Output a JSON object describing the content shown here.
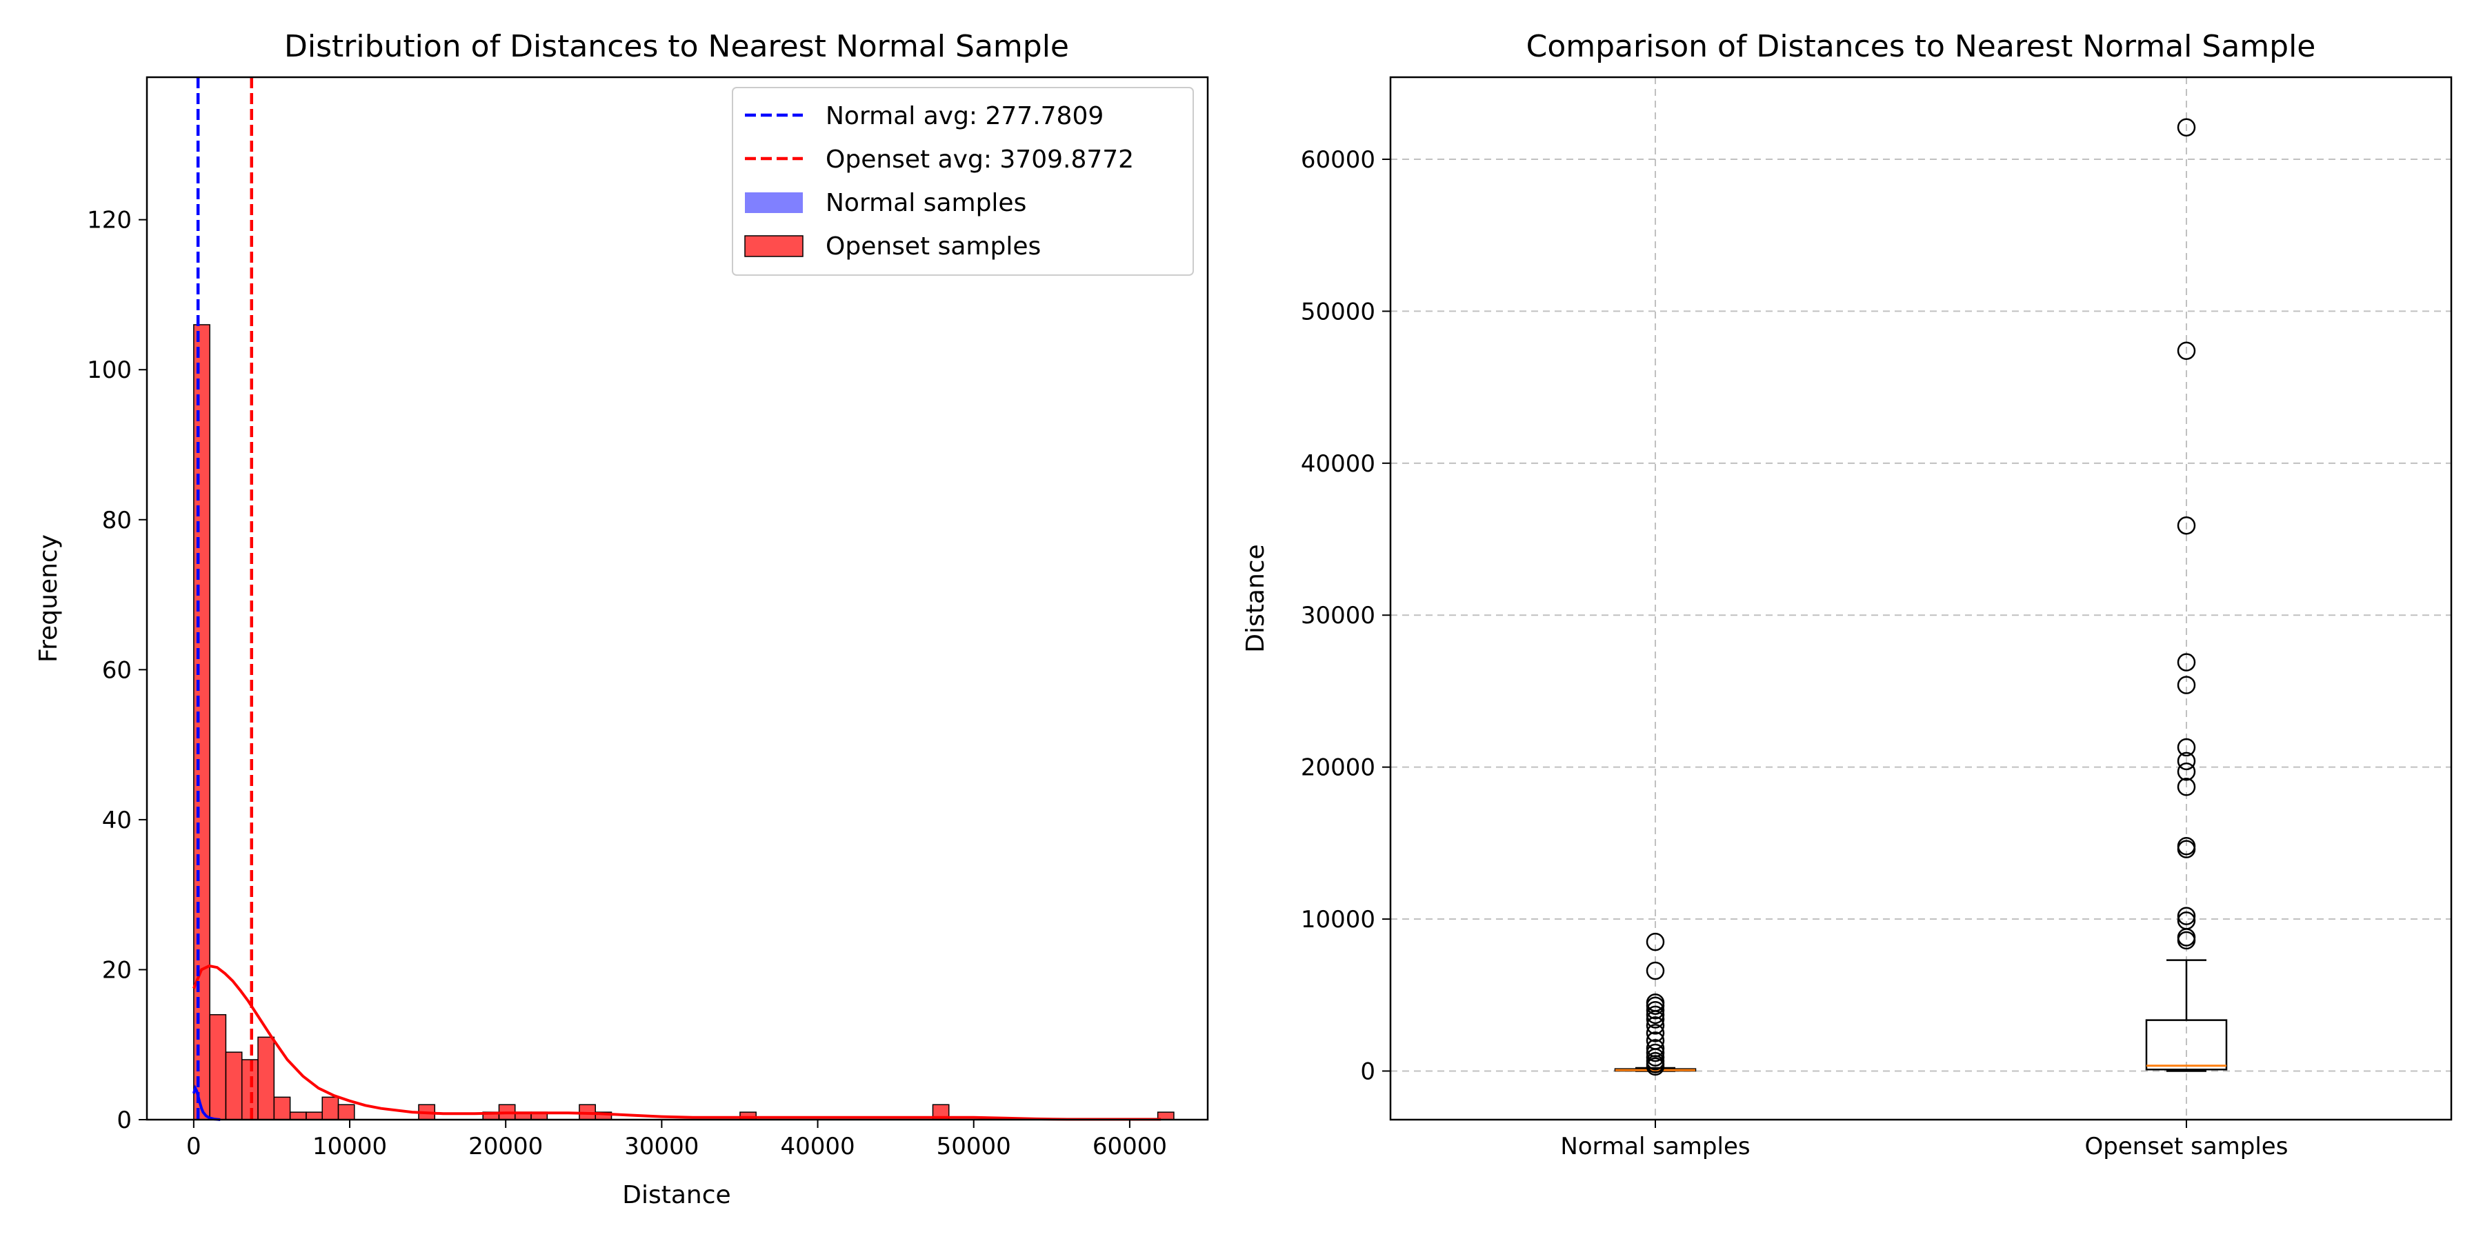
{
  "chart_data": [
    {
      "type": "histogram",
      "title": "Distribution of Distances to Nearest Normal Sample",
      "xlabel": "Distance",
      "ylabel": "Frequency",
      "xlim": [
        -3000,
        65000
      ],
      "ylim": [
        0,
        139
      ],
      "xticks": [
        0,
        10000,
        20000,
        30000,
        40000,
        50000,
        60000
      ],
      "yticks": [
        0,
        20,
        40,
        60,
        80,
        100,
        120
      ],
      "grid": false,
      "legend_position": "top-right",
      "bin_width": 1030,
      "series": [
        {
          "name": "Openset samples",
          "color": "#ff0000",
          "bin_starts": [
            0,
            1030,
            2060,
            3090,
            4120,
            5150,
            6180,
            7210,
            8240,
            9270,
            14420,
            18540,
            19570,
            20600,
            21630,
            24720,
            25750,
            35020,
            47380,
            61800
          ],
          "counts": [
            106,
            14,
            9,
            8,
            11,
            3,
            1,
            1,
            3,
            2,
            2,
            1,
            2,
            1,
            1,
            2,
            1,
            1,
            2,
            1
          ]
        },
        {
          "name": "Normal samples",
          "color": "#0000ff",
          "bin_starts": [],
          "counts": []
        }
      ],
      "kde": [
        {
          "series": "Openset samples",
          "color": "#ff0000",
          "x": [
            0,
            500,
            1000,
            1500,
            2000,
            2500,
            3000,
            3500,
            4000,
            5000,
            6000,
            7000,
            8000,
            9000,
            10000,
            11000,
            12000,
            14000,
            16000,
            18000,
            20000,
            22000,
            24000,
            26000,
            28000,
            30000,
            32000,
            34000,
            36000,
            38000,
            40000,
            42000,
            44000,
            46000,
            48000,
            50000,
            52000,
            54000,
            56000,
            58000,
            60000,
            62000
          ],
          "y": [
            17.5,
            20,
            20.5,
            20.3,
            19.5,
            18.5,
            17.2,
            15.8,
            14.2,
            11,
            8,
            5.8,
            4.2,
            3.2,
            2.5,
            1.9,
            1.5,
            1.0,
            0.8,
            0.8,
            0.9,
            0.9,
            0.9,
            0.8,
            0.6,
            0.4,
            0.3,
            0.3,
            0.3,
            0.3,
            0.3,
            0.3,
            0.3,
            0.3,
            0.3,
            0.3,
            0.2,
            0.1,
            0.05,
            0.05,
            0.05,
            0.05
          ]
        },
        {
          "series": "Normal samples",
          "color": "#0000ff",
          "x": [
            0,
            100,
            200,
            300,
            400,
            500,
            600,
            800,
            1000,
            1300,
            1700
          ],
          "y": [
            3.5,
            4.2,
            3.8,
            3.0,
            2.2,
            1.5,
            1.0,
            0.5,
            0.25,
            0.08,
            0
          ]
        }
      ],
      "vlines": [
        {
          "label": "Normal avg: 277.7809",
          "x": 277.7809,
          "color": "#0000ff",
          "style": "dashed"
        },
        {
          "label": "Openset avg: 3709.8772",
          "x": 3709.8772,
          "color": "#ff0000",
          "style": "dashed"
        }
      ],
      "legend": [
        {
          "label": "Normal avg: 277.7809",
          "kind": "line",
          "color": "#0000ff"
        },
        {
          "label": "Openset avg: 3709.8772",
          "kind": "line",
          "color": "#ff0000"
        },
        {
          "label": "Normal samples",
          "kind": "patch",
          "color": "#8080ff"
        },
        {
          "label": "Openset samples",
          "kind": "patch",
          "color": "#ff4d4d"
        }
      ]
    },
    {
      "type": "boxplot",
      "title": "Comparison of Distances to Nearest Normal Sample",
      "ylabel": "Distance",
      "categories": [
        "Normal samples",
        "Openset samples"
      ],
      "ylim": [
        -3200,
        65400
      ],
      "yticks": [
        0,
        10000,
        20000,
        30000,
        40000,
        50000,
        60000
      ],
      "grid": true,
      "boxes": [
        {
          "name": "Normal samples",
          "whislo": 0,
          "q1": 20,
          "med": 60,
          "q3": 130,
          "whishi": 200,
          "fliers": [
            300,
            450,
            650,
            900,
            1200,
            1500,
            2000,
            2500,
            3000,
            3400,
            3700,
            4000,
            4300,
            4500,
            6600,
            8500
          ]
        },
        {
          "name": "Openset samples",
          "whislo": 0,
          "q1": 100,
          "med": 350,
          "q3": 3350,
          "whishi": 7300,
          "fliers": [
            8600,
            8800,
            9900,
            10200,
            14600,
            14800,
            18700,
            19700,
            20400,
            21300,
            25400,
            26900,
            35900,
            47400,
            62100
          ]
        }
      ]
    }
  ]
}
